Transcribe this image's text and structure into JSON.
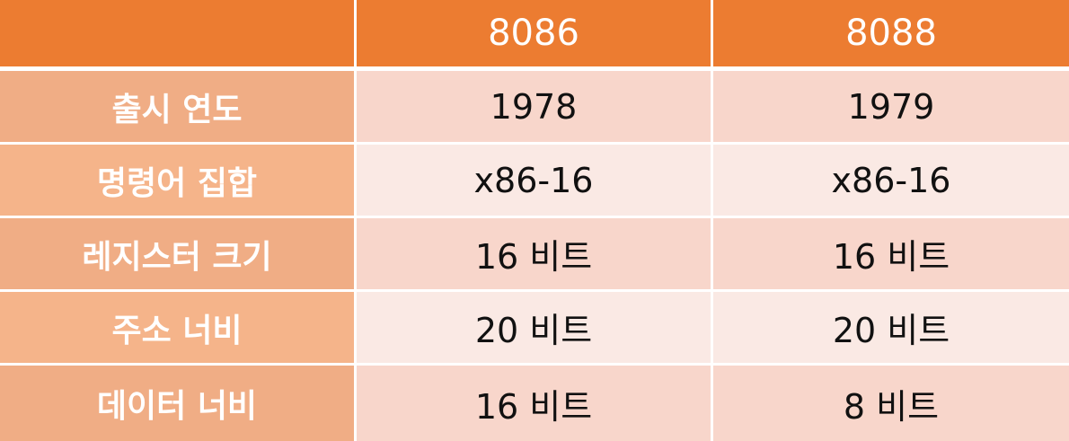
{
  "header": {
    "corner": "",
    "col1": "8086",
    "col2": "8088"
  },
  "rows": [
    {
      "label": "출시 연도",
      "v1": "1978",
      "v2": "1979"
    },
    {
      "label": "명령어 집합",
      "v1": "x86-16",
      "v2": "x86-16"
    },
    {
      "label": "레지스터 크기",
      "v1": "16 비트",
      "v2": "16 비트"
    },
    {
      "label": "주소 너비",
      "v1": "20 비트",
      "v2": "20 비트"
    },
    {
      "label": "데이터 너비",
      "v1": "16 비트",
      "v2": "8 비트"
    }
  ],
  "colors": {
    "header": "#ec7c31",
    "row_label": "#f0ae84",
    "value_odd": "#f8d6cb",
    "value_even": "#fae9e4"
  }
}
